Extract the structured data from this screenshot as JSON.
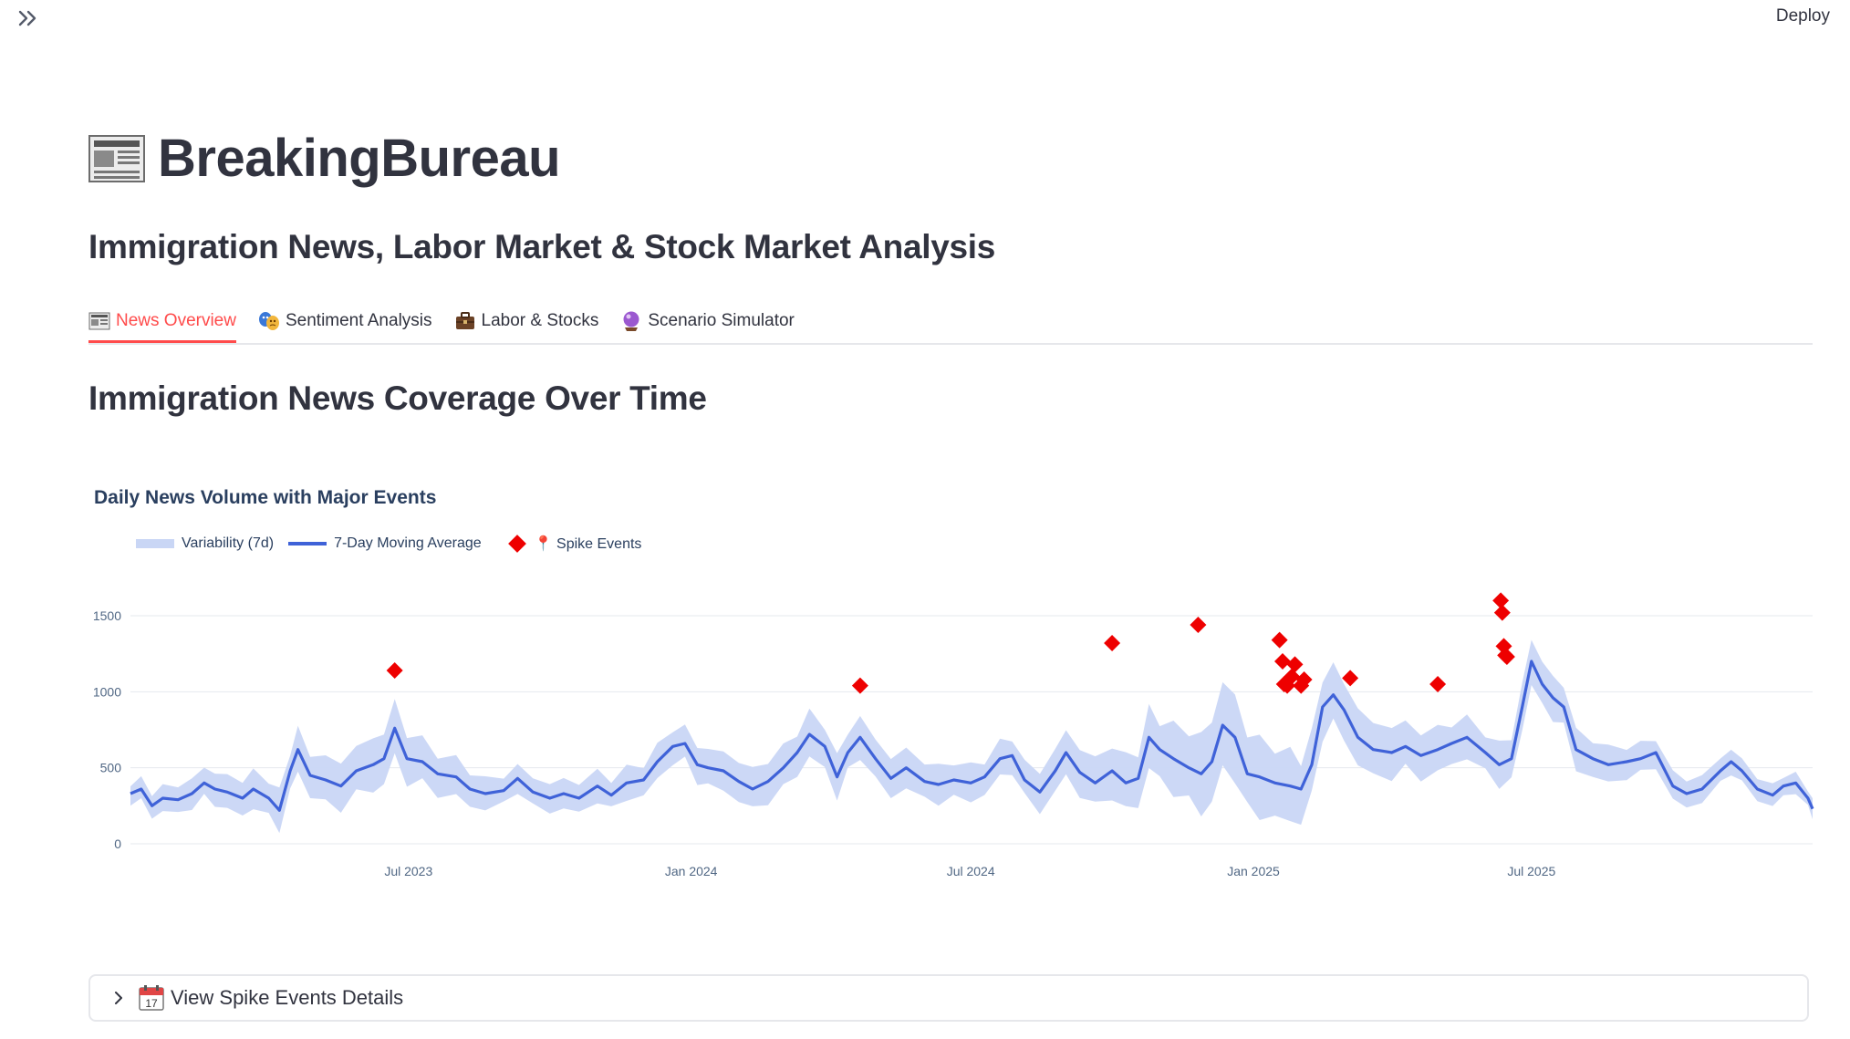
{
  "topbar": {
    "deploy_label": "Deploy",
    "sidebar_toggle_icon": "double-chevron-right-icon"
  },
  "app": {
    "title": "BreakingBureau",
    "title_icon": "newspaper-icon",
    "subtitle": "Immigration News, Labor Market & Stock Market Analysis"
  },
  "tabs": [
    {
      "label": "News Overview",
      "icon": "newspaper-icon",
      "active": true
    },
    {
      "label": "Sentiment Analysis",
      "icon": "theater-masks-icon",
      "active": false
    },
    {
      "label": "Labor & Stocks",
      "icon": "briefcase-icon",
      "active": false
    },
    {
      "label": "Scenario Simulator",
      "icon": "crystal-ball-icon",
      "active": false
    }
  ],
  "section": {
    "title": "Immigration News Coverage Over Time"
  },
  "colors": {
    "accent": "#ff4b4b",
    "line": "#3f62d8",
    "band": "#c9d6f5",
    "spike": "#ee0000",
    "text": "#31333f"
  },
  "chart_data": {
    "type": "line",
    "title": "Daily News Volume with Major Events",
    "legend": [
      "Variability (7d)",
      "7-Day Moving Average",
      "📍 Spike Events"
    ],
    "legend_position": "top-left",
    "ylim": [
      0,
      1650
    ],
    "yticks": [
      0,
      500,
      1000,
      1500
    ],
    "xticks": [
      "Jul 2023",
      "Jan 2024",
      "Jul 2024",
      "Jan 2025",
      "Jul 2025"
    ],
    "grid": true,
    "x_start": "2023-01-01",
    "x_end": "2025-12-31",
    "series": [
      {
        "name": "7-Day Moving Average",
        "points": [
          [
            "2023-01-01",
            330
          ],
          [
            "2023-01-08",
            360
          ],
          [
            "2023-01-15",
            250
          ],
          [
            "2023-01-22",
            300
          ],
          [
            "2023-02-01",
            290
          ],
          [
            "2023-02-10",
            330
          ],
          [
            "2023-02-18",
            400
          ],
          [
            "2023-02-25",
            360
          ],
          [
            "2023-03-05",
            340
          ],
          [
            "2023-03-15",
            300
          ],
          [
            "2023-03-22",
            360
          ],
          [
            "2023-04-01",
            300
          ],
          [
            "2023-04-08",
            220
          ],
          [
            "2023-04-15",
            480
          ],
          [
            "2023-04-20",
            620
          ],
          [
            "2023-04-28",
            450
          ],
          [
            "2023-05-08",
            420
          ],
          [
            "2023-05-18",
            380
          ],
          [
            "2023-05-28",
            480
          ],
          [
            "2023-06-08",
            520
          ],
          [
            "2023-06-15",
            560
          ],
          [
            "2023-06-22",
            760
          ],
          [
            "2023-06-30",
            560
          ],
          [
            "2023-07-10",
            540
          ],
          [
            "2023-07-20",
            460
          ],
          [
            "2023-08-01",
            440
          ],
          [
            "2023-08-10",
            360
          ],
          [
            "2023-08-20",
            330
          ],
          [
            "2023-09-01",
            350
          ],
          [
            "2023-09-10",
            430
          ],
          [
            "2023-09-20",
            340
          ],
          [
            "2023-10-01",
            300
          ],
          [
            "2023-10-10",
            330
          ],
          [
            "2023-10-20",
            300
          ],
          [
            "2023-11-01",
            380
          ],
          [
            "2023-11-10",
            320
          ],
          [
            "2023-11-20",
            400
          ],
          [
            "2023-12-01",
            420
          ],
          [
            "2023-12-10",
            540
          ],
          [
            "2023-12-20",
            640
          ],
          [
            "2023-12-28",
            660
          ],
          [
            "2024-01-05",
            520
          ],
          [
            "2024-01-12",
            500
          ],
          [
            "2024-01-22",
            480
          ],
          [
            "2024-02-01",
            410
          ],
          [
            "2024-02-10",
            360
          ],
          [
            "2024-02-20",
            410
          ],
          [
            "2024-03-01",
            500
          ],
          [
            "2024-03-10",
            600
          ],
          [
            "2024-03-18",
            720
          ],
          [
            "2024-03-28",
            640
          ],
          [
            "2024-04-05",
            440
          ],
          [
            "2024-04-12",
            600
          ],
          [
            "2024-04-20",
            700
          ],
          [
            "2024-04-30",
            560
          ],
          [
            "2024-05-10",
            430
          ],
          [
            "2024-05-20",
            500
          ],
          [
            "2024-06-01",
            410
          ],
          [
            "2024-06-10",
            390
          ],
          [
            "2024-06-20",
            420
          ],
          [
            "2024-07-01",
            400
          ],
          [
            "2024-07-10",
            440
          ],
          [
            "2024-07-20",
            560
          ],
          [
            "2024-07-28",
            580
          ],
          [
            "2024-08-05",
            420
          ],
          [
            "2024-08-15",
            340
          ],
          [
            "2024-08-25",
            480
          ],
          [
            "2024-09-01",
            600
          ],
          [
            "2024-09-10",
            470
          ],
          [
            "2024-09-20",
            400
          ],
          [
            "2024-10-01",
            480
          ],
          [
            "2024-10-10",
            400
          ],
          [
            "2024-10-18",
            430
          ],
          [
            "2024-10-25",
            700
          ],
          [
            "2024-11-01",
            620
          ],
          [
            "2024-11-10",
            560
          ],
          [
            "2024-11-20",
            500
          ],
          [
            "2024-11-28",
            460
          ],
          [
            "2024-12-05",
            540
          ],
          [
            "2024-12-12",
            780
          ],
          [
            "2024-12-20",
            700
          ],
          [
            "2024-12-28",
            460
          ],
          [
            "2025-01-05",
            440
          ],
          [
            "2025-01-15",
            400
          ],
          [
            "2025-01-25",
            380
          ],
          [
            "2025-02-01",
            360
          ],
          [
            "2025-02-08",
            520
          ],
          [
            "2025-02-15",
            900
          ],
          [
            "2025-02-22",
            980
          ],
          [
            "2025-03-01",
            880
          ],
          [
            "2025-03-10",
            700
          ],
          [
            "2025-03-20",
            620
          ],
          [
            "2025-04-01",
            600
          ],
          [
            "2025-04-10",
            640
          ],
          [
            "2025-04-20",
            580
          ],
          [
            "2025-05-01",
            620
          ],
          [
            "2025-05-10",
            660
          ],
          [
            "2025-05-20",
            700
          ],
          [
            "2025-06-01",
            600
          ],
          [
            "2025-06-10",
            520
          ],
          [
            "2025-06-18",
            560
          ],
          [
            "2025-06-25",
            900
          ],
          [
            "2025-07-01",
            1200
          ],
          [
            "2025-07-08",
            1050
          ],
          [
            "2025-07-15",
            960
          ],
          [
            "2025-07-22",
            900
          ],
          [
            "2025-07-30",
            620
          ],
          [
            "2025-08-10",
            560
          ],
          [
            "2025-08-20",
            520
          ],
          [
            "2025-09-01",
            540
          ],
          [
            "2025-09-10",
            560
          ],
          [
            "2025-09-20",
            600
          ],
          [
            "2025-10-01",
            380
          ],
          [
            "2025-10-10",
            330
          ],
          [
            "2025-10-20",
            360
          ],
          [
            "2025-11-01",
            480
          ],
          [
            "2025-11-08",
            540
          ],
          [
            "2025-11-15",
            480
          ],
          [
            "2025-11-25",
            360
          ],
          [
            "2025-12-05",
            320
          ],
          [
            "2025-12-12",
            380
          ],
          [
            "2025-12-20",
            400
          ],
          [
            "2025-12-28",
            300
          ],
          [
            "2025-12-31",
            230
          ]
        ]
      },
      {
        "name": "Variability (7d)",
        "band_width": [
          [
            "2023-01-01",
            80
          ],
          [
            "2023-04-08",
            150
          ],
          [
            "2023-06-22",
            200
          ],
          [
            "2023-09-01",
            100
          ],
          [
            "2023-12-28",
            130
          ],
          [
            "2024-03-18",
            170
          ],
          [
            "2024-04-20",
            150
          ],
          [
            "2024-07-28",
            130
          ],
          [
            "2024-10-25",
            220
          ],
          [
            "2024-12-12",
            320
          ],
          [
            "2025-02-22",
            220
          ],
          [
            "2025-05-20",
            150
          ],
          [
            "2025-07-01",
            170
          ],
          [
            "2025-09-20",
            110
          ],
          [
            "2025-12-31",
            70
          ]
        ]
      },
      {
        "name": "📍 Spike Events",
        "points": [
          [
            "2023-06-22",
            1140
          ],
          [
            "2024-04-20",
            1040
          ],
          [
            "2024-10-01",
            1320
          ],
          [
            "2024-11-26",
            1440
          ],
          [
            "2025-01-18",
            1340
          ],
          [
            "2025-01-20",
            1200
          ],
          [
            "2025-01-21",
            1050
          ],
          [
            "2025-01-23",
            1040
          ],
          [
            "2025-01-26",
            1100
          ],
          [
            "2025-01-28",
            1180
          ],
          [
            "2025-02-01",
            1040
          ],
          [
            "2025-02-03",
            1080
          ],
          [
            "2025-03-05",
            1090
          ],
          [
            "2025-05-01",
            1050
          ],
          [
            "2025-06-11",
            1600
          ],
          [
            "2025-06-12",
            1520
          ],
          [
            "2025-06-13",
            1300
          ],
          [
            "2025-06-14",
            1240
          ],
          [
            "2025-06-15",
            1230
          ]
        ]
      }
    ]
  },
  "expander": {
    "label": "View Spike Events Details",
    "icon": "calendar-icon"
  }
}
